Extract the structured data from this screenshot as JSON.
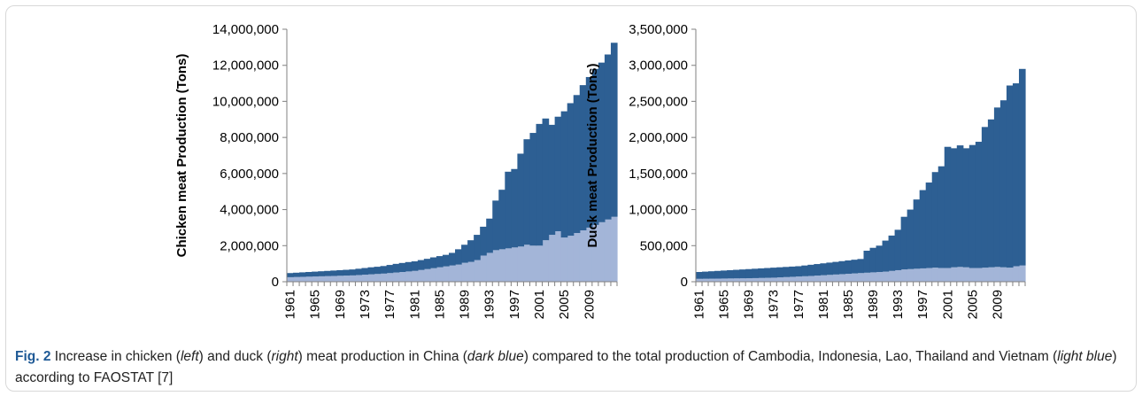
{
  "chart_data": [
    {
      "type": "area",
      "stacked": true,
      "ylabel": "Chicken meat Production (Tons)",
      "ylim": [
        0,
        14000000
      ],
      "yticks": [
        0,
        2000000,
        4000000,
        6000000,
        8000000,
        10000000,
        12000000,
        14000000
      ],
      "ytick_labels": [
        "0",
        "2,000,000",
        "4,000,000",
        "6,000,000",
        "8,000,000",
        "10,000,000",
        "12,000,000",
        "14,000,000"
      ],
      "x_start": 1961,
      "x_end": 2012,
      "xtick_labels": [
        "1961",
        "1965",
        "1969",
        "1973",
        "1977",
        "1981",
        "1985",
        "1989",
        "1993",
        "1997",
        "2001",
        "2005",
        "2009"
      ],
      "grid": false,
      "series": [
        {
          "color": "#a3b5d8",
          "values": [
            250000,
            260000,
            270000,
            280000,
            290000,
            300000,
            310000,
            320000,
            330000,
            340000,
            350000,
            370000,
            390000,
            410000,
            430000,
            450000,
            480000,
            510000,
            540000,
            570000,
            600000,
            650000,
            700000,
            750000,
            800000,
            850000,
            900000,
            950000,
            1050000,
            1100000,
            1200000,
            1450000,
            1600000,
            1750000,
            1800000,
            1850000,
            1900000,
            1950000,
            2050000,
            2000000,
            2000000,
            2300000,
            2600000,
            2800000,
            2450000,
            2550000,
            2700000,
            2850000,
            3000000,
            3150000,
            3300000,
            3450000,
            3600000
          ]
        },
        {
          "color": "#2d5f93",
          "values": [
            230000,
            240000,
            250000,
            260000,
            270000,
            280000,
            290000,
            300000,
            310000,
            320000,
            330000,
            350000,
            370000,
            390000,
            400000,
            420000,
            450000,
            480000,
            500000,
            520000,
            530000,
            550000,
            570000,
            600000,
            620000,
            640000,
            700000,
            850000,
            1000000,
            1200000,
            1400000,
            1600000,
            1900000,
            2750000,
            3300000,
            4250000,
            4350000,
            5150000,
            5850000,
            6250000,
            6750000,
            6750000,
            6100000,
            6350000,
            7000000,
            7350000,
            7650000,
            8050000,
            8350000,
            8650000,
            8850000,
            9150000,
            9650000
          ]
        }
      ]
    },
    {
      "type": "area",
      "stacked": true,
      "ylabel": "Duck meat Production (Tons)",
      "ylim": [
        0,
        3500000
      ],
      "yticks": [
        0,
        500000,
        1000000,
        1500000,
        2000000,
        2500000,
        3000000,
        3500000
      ],
      "ytick_labels": [
        "0",
        "500,000",
        "1,000,000",
        "1,500,000",
        "2,000,000",
        "2,500,000",
        "3,000,000",
        "3,500,000"
      ],
      "x_start": 1961,
      "x_end": 2012,
      "xtick_labels": [
        "1961",
        "1965",
        "1969",
        "1973",
        "1977",
        "1981",
        "1985",
        "1989",
        "1993",
        "1997",
        "2001",
        "2005",
        "2009"
      ],
      "grid": false,
      "series": [
        {
          "color": "#a3b5d8",
          "values": [
            40000,
            41000,
            42000,
            43000,
            44000,
            45000,
            46000,
            47000,
            48000,
            50000,
            52000,
            54000,
            56000,
            60000,
            64000,
            68000,
            72000,
            76000,
            80000,
            85000,
            90000,
            95000,
            100000,
            105000,
            110000,
            115000,
            120000,
            125000,
            130000,
            135000,
            140000,
            150000,
            160000,
            170000,
            175000,
            180000,
            185000,
            190000,
            195000,
            190000,
            190000,
            200000,
            205000,
            200000,
            190000,
            190000,
            195000,
            200000,
            205000,
            200000,
            195000,
            215000,
            225000
          ]
        },
        {
          "color": "#2d5f93",
          "values": [
            95000,
            99000,
            103000,
            107000,
            111000,
            115000,
            119000,
            123000,
            127000,
            130000,
            133000,
            136000,
            139000,
            140000,
            141000,
            142000,
            143000,
            149000,
            155000,
            160000,
            165000,
            170000,
            175000,
            180000,
            185000,
            190000,
            195000,
            305000,
            340000,
            365000,
            430000,
            490000,
            560000,
            730000,
            825000,
            960000,
            1085000,
            1185000,
            1325000,
            1410000,
            1680000,
            1650000,
            1685000,
            1650000,
            1705000,
            1750000,
            1950000,
            2050000,
            2210000,
            2315000,
            2525000,
            2535000,
            2725000
          ]
        }
      ]
    }
  ],
  "caption": {
    "fig_label": "Fig. 2",
    "t1": " Increase in chicken (",
    "e1": "left",
    "t2": ") and duck (",
    "e2": "right",
    "t3": ") meat production in China (",
    "e3": "dark blue",
    "t4": ") compared to the total production of Cambodia, Indonesia, Lao, Thailand and Vietnam (",
    "e4": "light blue",
    "t5": ") according to FAOSTAT [7]"
  }
}
